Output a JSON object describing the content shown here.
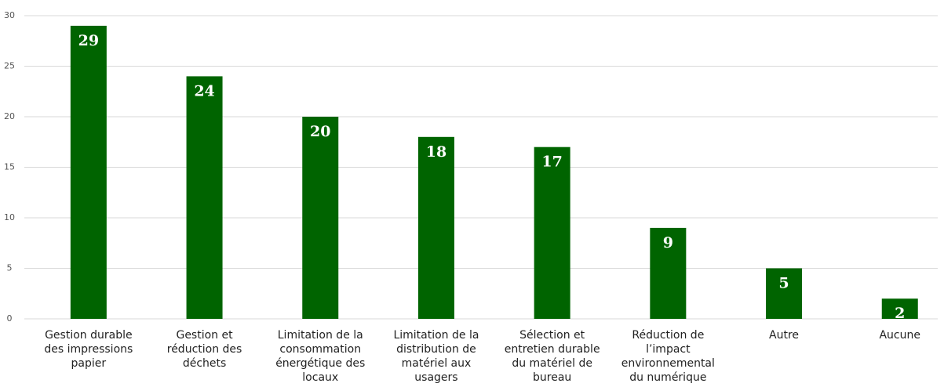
{
  "chart_data": {
    "type": "bar",
    "categories": [
      "Gestion durable des impressions papier",
      "Gestion et réduction des déchets",
      "Limitation de la consommation énergétique des locaux",
      "Limitation de la distribution de matériel aux usagers",
      "Sélection et entretien durable du matériel de bureau",
      "Réduction de l’impact environnemental du numérique",
      "Autre",
      "Aucune"
    ],
    "values": [
      29,
      24,
      20,
      18,
      17,
      9,
      5,
      2
    ],
    "color": "#006400",
    "ylim": [
      0,
      30
    ],
    "yticks": [
      0,
      5,
      10,
      15,
      20,
      25,
      30
    ],
    "grid": true
  }
}
